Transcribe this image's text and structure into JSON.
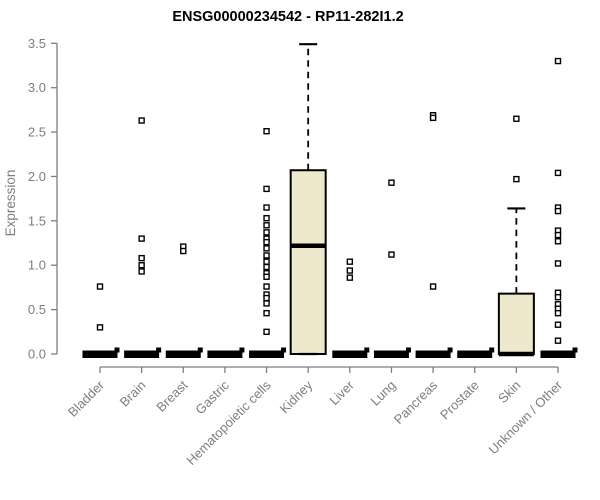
{
  "colors": {
    "background": "#ffffff",
    "axis": "#7e7e7e",
    "tick_label": "#7e7e7e",
    "title": "#000000",
    "box_fill": "#eee8cd",
    "box_stroke": "#000000",
    "outlier_fill": "#ffffff",
    "outlier_stroke": "#000000"
  },
  "chart_data": {
    "type": "boxplot",
    "title": "ENSG00000234542 - RP11-282I1.2",
    "xlabel": "",
    "ylabel": "Expression",
    "ylim": [
      0,
      3.5
    ],
    "yticks": [
      0.0,
      0.5,
      1.0,
      1.5,
      2.0,
      2.5,
      3.0,
      3.5
    ],
    "grid": false,
    "legend": false,
    "categories": [
      "Bladder",
      "Brain",
      "Breast",
      "Gastric",
      "Hematopoietic cells",
      "Kidney",
      "Liver",
      "Lung",
      "Pancreas",
      "Prostate",
      "Skin",
      "Unknown / Other"
    ],
    "boxes": [
      {
        "category": "Bladder",
        "q1": 0,
        "median": 0,
        "q3": 0,
        "whisker_low": 0,
        "whisker_high": 0,
        "outliers": [
          0.76,
          0.3
        ]
      },
      {
        "category": "Brain",
        "q1": 0,
        "median": 0,
        "q3": 0,
        "whisker_low": 0,
        "whisker_high": 0,
        "outliers": [
          2.63,
          1.3,
          1.08,
          1.0,
          0.93
        ]
      },
      {
        "category": "Breast",
        "q1": 0,
        "median": 0,
        "q3": 0,
        "whisker_low": 0,
        "whisker_high": 0,
        "outliers": [
          1.21,
          1.16
        ]
      },
      {
        "category": "Gastric",
        "q1": 0,
        "median": 0,
        "q3": 0,
        "whisker_low": 0,
        "whisker_high": 0,
        "outliers": []
      },
      {
        "category": "Hematopoietic cells",
        "q1": 0,
        "median": 0,
        "q3": 0,
        "whisker_low": 0,
        "whisker_high": 0,
        "outliers": [
          2.51,
          1.86,
          1.65,
          1.53,
          1.45,
          1.37,
          1.3,
          1.26,
          1.19,
          1.11,
          1.04,
          0.98,
          0.91,
          0.87,
          0.76,
          0.67,
          0.63,
          0.57,
          0.46,
          0.25
        ]
      },
      {
        "category": "Kidney",
        "q1": 0,
        "median": 1.22,
        "q3": 2.07,
        "whisker_low": 0,
        "whisker_high": 3.49,
        "outliers": []
      },
      {
        "category": "Liver",
        "q1": 0,
        "median": 0,
        "q3": 0,
        "whisker_low": 0,
        "whisker_high": 0,
        "outliers": [
          1.04,
          0.94,
          0.86
        ]
      },
      {
        "category": "Lung",
        "q1": 0,
        "median": 0,
        "q3": 0,
        "whisker_low": 0,
        "whisker_high": 0,
        "outliers": [
          1.93,
          1.12
        ]
      },
      {
        "category": "Pancreas",
        "q1": 0,
        "median": 0,
        "q3": 0,
        "whisker_low": 0,
        "whisker_high": 0,
        "outliers": [
          2.69,
          2.66,
          0.76
        ]
      },
      {
        "category": "Prostate",
        "q1": 0,
        "median": 0,
        "q3": 0,
        "whisker_low": 0,
        "whisker_high": 0,
        "outliers": []
      },
      {
        "category": "Skin",
        "q1": 0,
        "median": 0,
        "q3": 0.68,
        "whisker_low": 0,
        "whisker_high": 1.64,
        "outliers": [
          2.65,
          1.97
        ]
      },
      {
        "category": "Unknown / Other",
        "q1": 0,
        "median": 0,
        "q3": 0,
        "whisker_low": 0,
        "whisker_high": 0,
        "outliers": [
          3.3,
          2.04,
          1.65,
          1.61,
          1.39,
          1.34,
          1.27,
          1.02,
          0.69,
          0.64,
          0.56,
          0.51,
          0.46,
          0.33,
          0.15
        ]
      }
    ]
  }
}
